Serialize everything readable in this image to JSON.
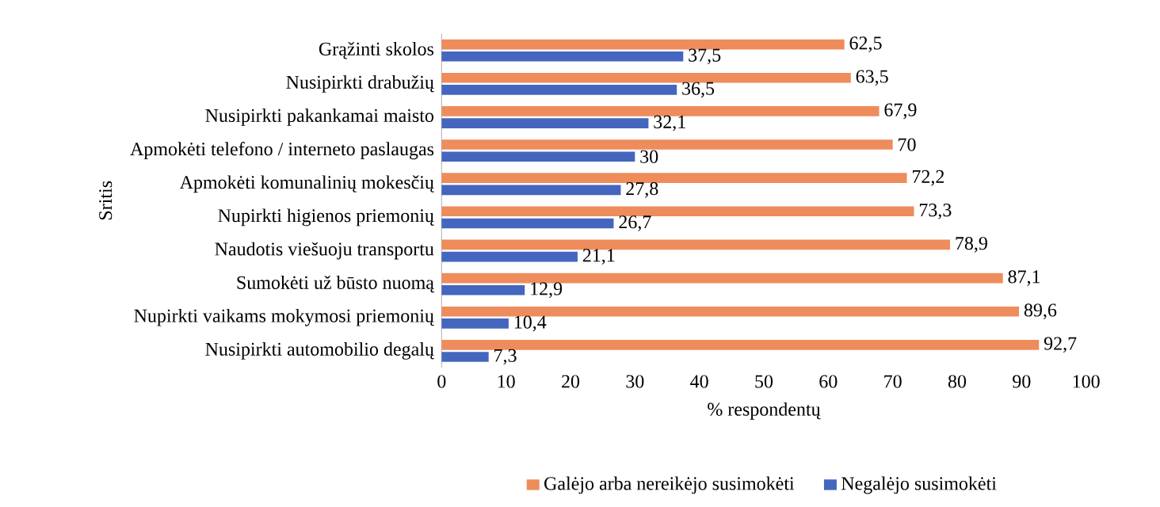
{
  "chart_data": {
    "type": "bar",
    "orientation": "horizontal",
    "ylabel": "Sritis",
    "xlabel": "% respondentų",
    "categories": [
      "Grąžinti skolos",
      "Nusipirkti drabužių",
      "Nusipirkti pakankamai maisto",
      "Apmokėti telefono / interneto paslaugas",
      "Apmokėti komunalinių mokesčių",
      "Nupirkti higienos priemonių",
      "Naudotis viešuoju transportu",
      "Sumokėti už būsto nuomą",
      "Nupirkti vaikams mokymosi priemonių",
      "Nusipirkti automobilio degalų"
    ],
    "series": [
      {
        "name": "Galėjo arba nereikėjo susimokėti",
        "color": "#EE8C5C",
        "values": [
          62.5,
          63.5,
          67.9,
          70,
          72.2,
          73.3,
          78.9,
          87.1,
          89.6,
          92.7
        ],
        "value_labels": [
          "62,5",
          "63,5",
          "67,9",
          "70",
          "72,2",
          "73,3",
          "78,9",
          "87,1",
          "89,6",
          "92,7"
        ]
      },
      {
        "name": "Negalėjo susimokėti",
        "color": "#4466BE",
        "values": [
          37.5,
          36.5,
          32.1,
          30,
          27.8,
          26.7,
          21.1,
          12.9,
          10.4,
          7.3
        ],
        "value_labels": [
          "37,5",
          "36,5",
          "32,1",
          "30",
          "27,8",
          "26,7",
          "21,1",
          "12,9",
          "10,4",
          "7,3"
        ]
      }
    ],
    "xlim": [
      0,
      100
    ],
    "xticks": [
      0,
      10,
      20,
      30,
      40,
      50,
      60,
      70,
      80,
      90,
      100
    ],
    "grid": false,
    "legend": "bottom"
  }
}
